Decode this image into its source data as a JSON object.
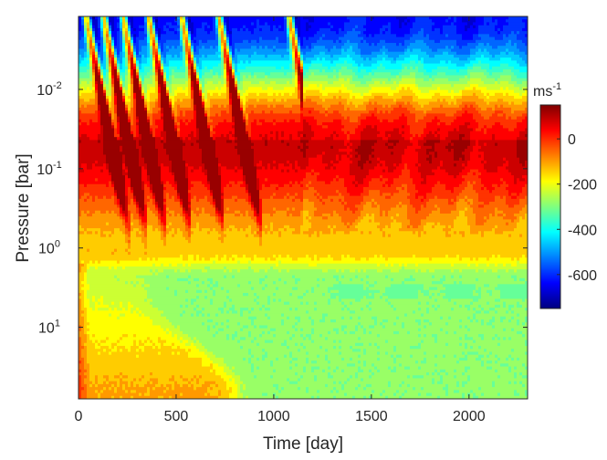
{
  "chart_data": {
    "type": "heatmap",
    "title": "",
    "xlabel": "Time [day]",
    "ylabel": "Pressure [bar]",
    "xlim": [
      0,
      2300
    ],
    "ylim_pressure_bar": [
      80,
      0.0012
    ],
    "yscale": "log",
    "y_reversed": true,
    "x_ticks": [
      {
        "value": 0,
        "label": "0"
      },
      {
        "value": 500,
        "label": "500"
      },
      {
        "value": 1000,
        "label": "1000"
      },
      {
        "value": 1500,
        "label": "1500"
      },
      {
        "value": 2000,
        "label": "2000"
      }
    ],
    "y_ticks": [
      {
        "value": 0.01,
        "base": "10",
        "exp": "-2"
      },
      {
        "value": 0.1,
        "base": "10",
        "exp": "-1"
      },
      {
        "value": 1,
        "base": "10",
        "exp": "0"
      },
      {
        "value": 10,
        "base": "10",
        "exp": "1"
      }
    ],
    "colorbar": {
      "unit_base": "ms",
      "unit_exp": "-1",
      "range": [
        -750,
        150
      ],
      "ticks": [
        {
          "value": 0,
          "label": "0"
        },
        {
          "value": -200,
          "label": "-200"
        },
        {
          "value": -400,
          "label": "-400"
        },
        {
          "value": -600,
          "label": "-600"
        }
      ],
      "colormap": "jet",
      "levels": 20
    },
    "field_description_values": {
      "deep_layer_ms": -300,
      "jet_core_ms": 80,
      "jet_core_pressure_bar": [
        0.04,
        0.4
      ],
      "upper_atmosphere_ms": -600,
      "oscillation_onset_days": [
        40,
        130,
        230,
        360,
        530,
        720,
        1080
      ],
      "oscillation_period_days": 170,
      "spinup_end_day": 1150
    }
  }
}
